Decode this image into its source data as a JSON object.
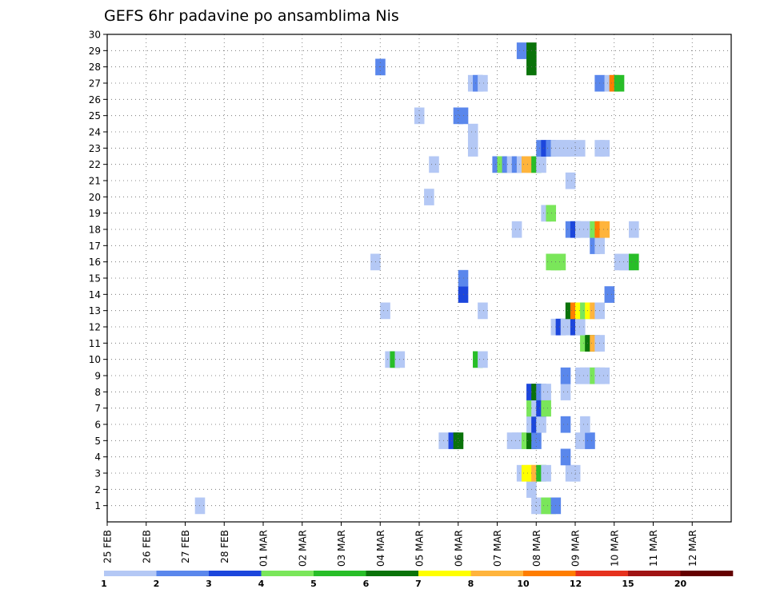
{
  "chart_data": {
    "type": "heatmap",
    "title": "GEFS 6hr padavine po ansamblima Nis",
    "x_tick_labels": [
      "25 FEB",
      "26 FEB",
      "27 FEB",
      "28 FEB",
      "01 MAR",
      "02 MAR",
      "03 MAR",
      "04 MAR",
      "05 MAR",
      "06 MAR",
      "07 MAR",
      "08 MAR",
      "09 MAR",
      "10 MAR",
      "11 MAR",
      "12 MAR"
    ],
    "x_range_days": [
      0,
      16
    ],
    "steps_per_day": 4,
    "y_tick_labels": [
      1,
      2,
      3,
      4,
      5,
      6,
      7,
      8,
      9,
      10,
      11,
      12,
      13,
      14,
      15,
      16,
      17,
      18,
      19,
      20,
      21,
      22,
      23,
      24,
      25,
      26,
      27,
      28,
      29,
      30
    ],
    "y_range": [
      0,
      30
    ],
    "grid": true,
    "legend": {
      "position": "bottom",
      "labels": [
        "1",
        "2",
        "3",
        "4",
        "5",
        "6",
        "7",
        "8",
        "10",
        "12",
        "15",
        "20"
      ],
      "bounds": [
        1,
        2,
        3,
        4,
        5,
        6,
        7,
        8,
        10,
        12,
        15,
        20,
        100
      ],
      "colors": [
        "#b4c8f5",
        "#5a87ec",
        "#1c46dc",
        "#7ae65a",
        "#28be28",
        "#0a730a",
        "#ffff00",
        "#ffb43c",
        "#ff7d00",
        "#e6321e",
        "#a01414",
        "#640000"
      ]
    },
    "cells": [
      [
        1,
        9.0,
        1.5
      ],
      [
        1,
        43.5,
        1.5
      ],
      [
        1,
        44.0,
        1.5
      ],
      [
        1,
        44.5,
        4.0
      ],
      [
        1,
        45.0,
        4.0
      ],
      [
        1,
        45.5,
        2.5
      ],
      [
        2,
        43.0,
        1.5
      ],
      [
        3,
        42.0,
        1.5
      ],
      [
        3,
        42.5,
        7.5
      ],
      [
        3,
        43.0,
        7.5
      ],
      [
        3,
        43.5,
        9.5
      ],
      [
        3,
        44.0,
        5.5
      ],
      [
        3,
        44.5,
        1.5
      ],
      [
        3,
        47.0,
        1.5
      ],
      [
        3,
        47.5,
        1.5
      ],
      [
        4,
        46.5,
        2.5
      ],
      [
        5,
        34.0,
        1.5
      ],
      [
        5,
        35.0,
        3.5
      ],
      [
        5,
        35.5,
        6.5
      ],
      [
        5,
        41.0,
        1.5
      ],
      [
        5,
        41.5,
        1.5
      ],
      [
        5,
        42.0,
        1.5
      ],
      [
        5,
        42.5,
        4.5
      ],
      [
        5,
        43.0,
        6.5
      ],
      [
        5,
        43.5,
        2.5
      ],
      [
        5,
        48.0,
        1.5
      ],
      [
        5,
        48.5,
        1.5
      ],
      [
        5,
        49.0,
        2.5
      ],
      [
        6,
        43.0,
        1.5
      ],
      [
        6,
        43.5,
        3.5
      ],
      [
        6,
        44.0,
        1.5
      ],
      [
        6,
        46.5,
        2.5
      ],
      [
        6,
        48.5,
        1.5
      ],
      [
        7,
        43.0,
        4.5
      ],
      [
        7,
        43.5,
        1.5
      ],
      [
        7,
        44.0,
        3.5
      ],
      [
        7,
        44.5,
        4.5
      ],
      [
        8,
        43.0,
        3.5
      ],
      [
        8,
        43.5,
        6.5
      ],
      [
        8,
        44.0,
        2.5
      ],
      [
        8,
        44.5,
        1.5
      ],
      [
        8,
        46.5,
        1.5
      ],
      [
        9,
        46.5,
        2.5
      ],
      [
        9,
        48.0,
        1.5
      ],
      [
        9,
        48.5,
        1.5
      ],
      [
        9,
        49.0,
        1.5
      ],
      [
        9,
        49.5,
        4.5
      ],
      [
        9,
        50.0,
        1.5
      ],
      [
        9,
        50.5,
        1.5
      ],
      [
        10,
        28.5,
        1.5
      ],
      [
        10,
        29.0,
        5.5
      ],
      [
        10,
        29.5,
        1.5
      ],
      [
        10,
        37.5,
        5.5
      ],
      [
        10,
        38.0,
        1.5
      ],
      [
        11,
        48.5,
        4.5
      ],
      [
        11,
        49.0,
        6.5
      ],
      [
        11,
        49.5,
        9.5
      ],
      [
        11,
        50.0,
        1.5
      ],
      [
        12,
        45.5,
        1.5
      ],
      [
        12,
        46.0,
        3.5
      ],
      [
        12,
        46.5,
        1.5
      ],
      [
        12,
        47.5,
        3.5
      ],
      [
        12,
        48.0,
        1.5
      ],
      [
        13,
        28.0,
        1.5
      ],
      [
        13,
        38.0,
        1.5
      ],
      [
        13,
        47.0,
        6.5
      ],
      [
        13,
        47.5,
        11.0
      ],
      [
        13,
        48.0,
        7.5
      ],
      [
        13,
        48.5,
        4.5
      ],
      [
        13,
        49.0,
        7.5
      ],
      [
        13,
        49.5,
        9.5
      ],
      [
        13,
        50.0,
        1.5
      ],
      [
        14,
        36.0,
        3.5
      ],
      [
        14,
        51.0,
        2.5
      ],
      [
        15,
        36.0,
        2.5
      ],
      [
        16,
        27.0,
        1.5
      ],
      [
        16,
        45.0,
        4.5
      ],
      [
        16,
        45.5,
        4.5
      ],
      [
        16,
        46.0,
        4.5
      ],
      [
        16,
        52.0,
        1.5
      ],
      [
        16,
        52.5,
        1.5
      ],
      [
        16,
        53.0,
        1.5
      ],
      [
        16,
        53.5,
        5.5
      ],
      [
        17,
        49.5,
        2.5
      ],
      [
        17,
        50.0,
        1.5
      ],
      [
        18,
        41.5,
        1.5
      ],
      [
        18,
        47.0,
        2.5
      ],
      [
        18,
        47.5,
        3.5
      ],
      [
        18,
        48.0,
        1.5
      ],
      [
        18,
        48.5,
        1.5
      ],
      [
        18,
        49.0,
        1.5
      ],
      [
        18,
        49.5,
        4.5
      ],
      [
        18,
        50.0,
        10.5
      ],
      [
        18,
        50.5,
        9.5
      ],
      [
        18,
        53.5,
        1.5
      ],
      [
        19,
        44.5,
        1.5
      ],
      [
        19,
        45.0,
        4.5
      ],
      [
        20,
        32.5,
        1.5
      ],
      [
        21,
        47.0,
        1.5
      ],
      [
        22,
        33.0,
        1.5
      ],
      [
        22,
        39.5,
        2.5
      ],
      [
        22,
        40.0,
        4.5
      ],
      [
        22,
        40.5,
        2.5
      ],
      [
        22,
        41.0,
        1.5
      ],
      [
        22,
        41.5,
        2.5
      ],
      [
        22,
        42.0,
        1.5
      ],
      [
        22,
        42.5,
        9.5
      ],
      [
        22,
        43.0,
        9.5
      ],
      [
        22,
        43.5,
        5.5
      ],
      [
        22,
        44.0,
        1.5
      ],
      [
        23,
        37.0,
        1.5
      ],
      [
        23,
        44.0,
        2.5
      ],
      [
        23,
        44.5,
        3.5
      ],
      [
        23,
        45.0,
        2.5
      ],
      [
        23,
        45.5,
        1.5
      ],
      [
        23,
        46.0,
        1.5
      ],
      [
        23,
        46.5,
        1.5
      ],
      [
        23,
        47.0,
        1.5
      ],
      [
        23,
        48.0,
        1.5
      ],
      [
        23,
        50.0,
        1.5
      ],
      [
        23,
        50.5,
        1.5
      ],
      [
        24,
        37.0,
        1.5
      ],
      [
        25,
        31.5,
        1.5
      ],
      [
        25,
        35.5,
        2.5
      ],
      [
        25,
        36.0,
        2.5
      ],
      [
        27,
        37.0,
        1.5
      ],
      [
        27,
        37.5,
        2.5
      ],
      [
        27,
        38.0,
        1.5
      ],
      [
        27,
        50.0,
        2.5
      ],
      [
        27,
        51.0,
        1.5
      ],
      [
        27,
        51.5,
        10.5
      ],
      [
        27,
        52.0,
        5.5
      ],
      [
        28,
        27.5,
        2.5
      ],
      [
        28,
        43.0,
        6.5
      ],
      [
        29,
        42.0,
        2.5
      ],
      [
        29,
        43.0,
        6.5
      ]
    ]
  }
}
